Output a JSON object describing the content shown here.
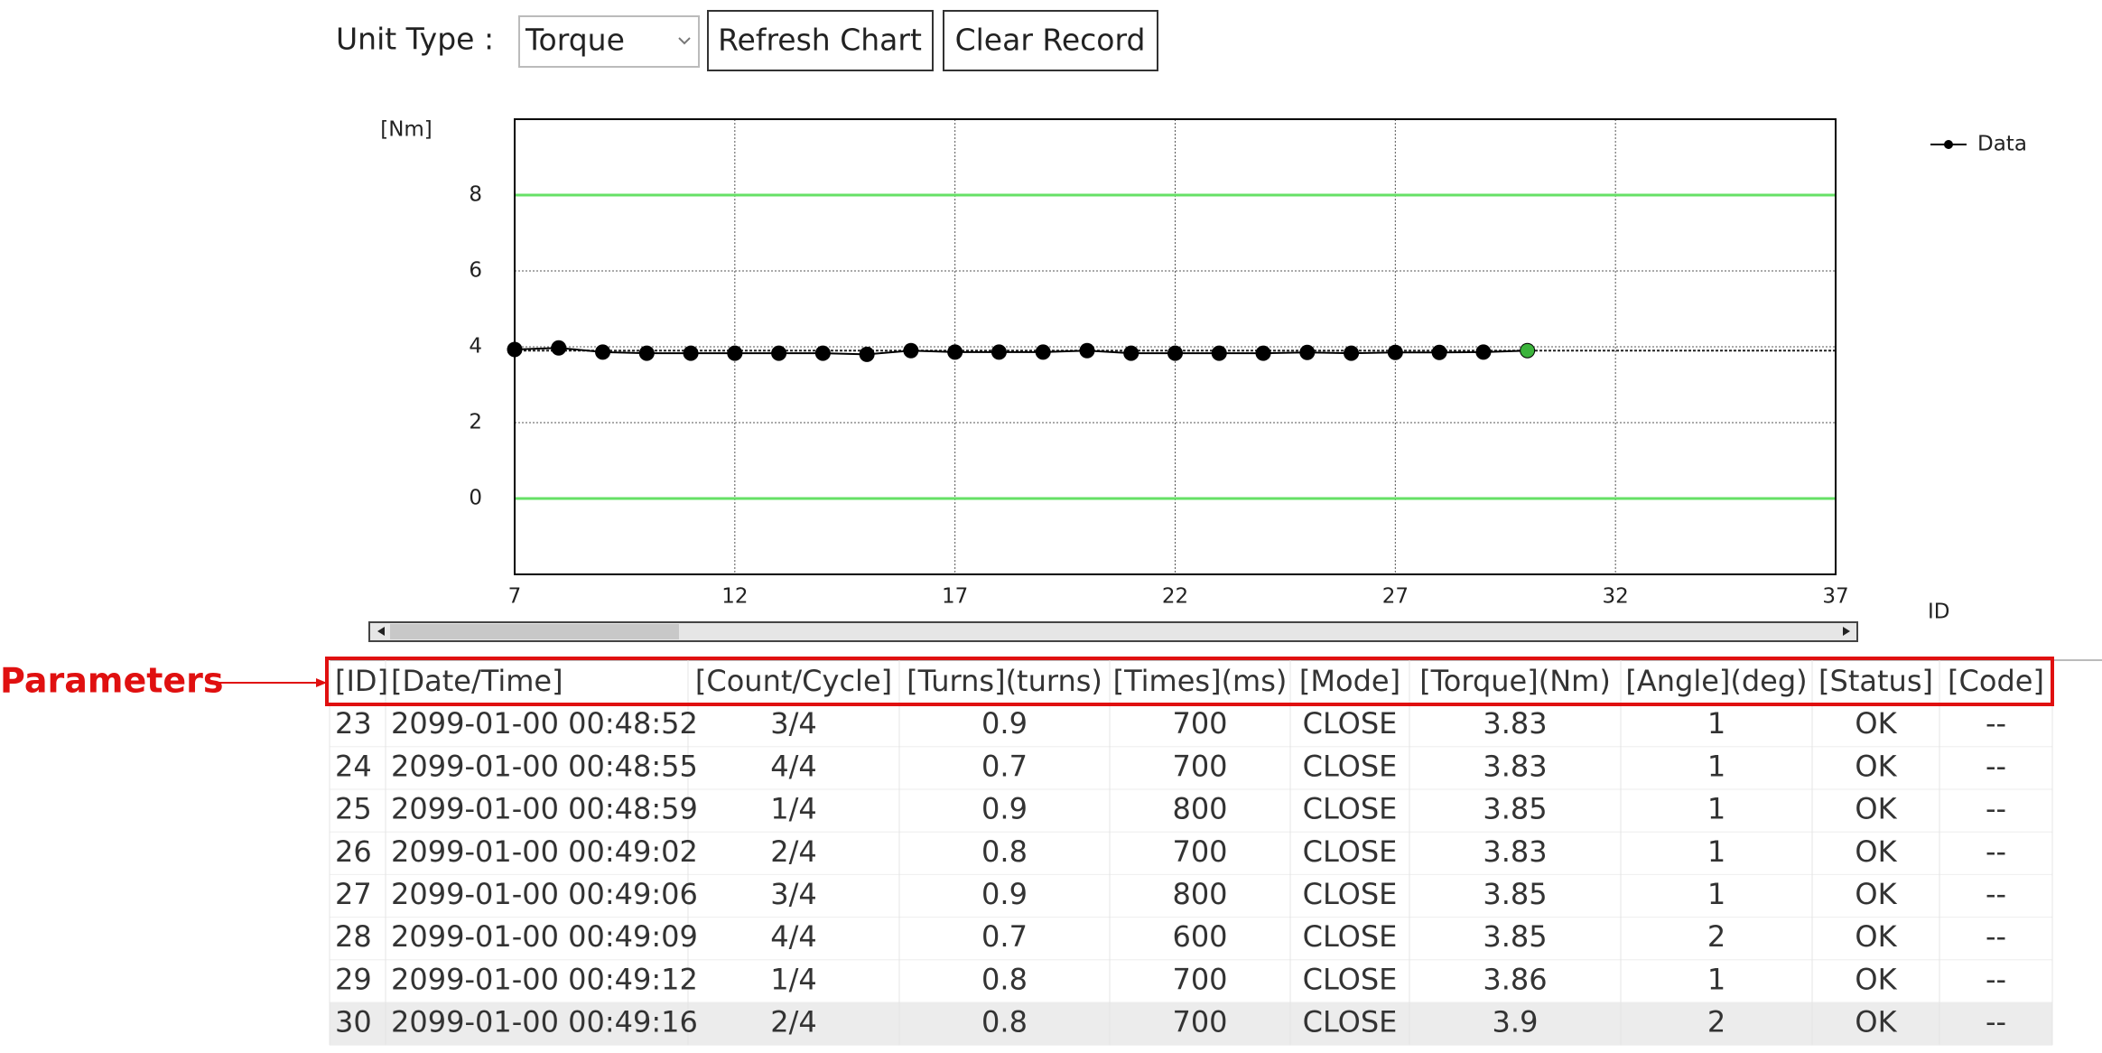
{
  "toolbar": {
    "unit_label": "Unit Type :",
    "unit_value": "Torque",
    "refresh_button": "Refresh Chart",
    "clear_button": "Clear Record"
  },
  "chart_data": {
    "type": "line",
    "y_label": "[Nm]",
    "x_label": "ID",
    "x": [
      7,
      8,
      9,
      10,
      11,
      12,
      13,
      14,
      15,
      16,
      17,
      18,
      19,
      20,
      21,
      22,
      23,
      24,
      25,
      26,
      27,
      28,
      29,
      30
    ],
    "series": [
      {
        "name": "Data",
        "color": "#000000",
        "last_point_color": "#3cb43c",
        "values": [
          3.93,
          3.97,
          3.86,
          3.83,
          3.83,
          3.83,
          3.83,
          3.83,
          3.8,
          3.9,
          3.86,
          3.86,
          3.86,
          3.9,
          3.83,
          3.83,
          3.83,
          3.83,
          3.85,
          3.83,
          3.85,
          3.85,
          3.86,
          3.9
        ]
      }
    ],
    "xlim": [
      7,
      37
    ],
    "xticks": [
      7,
      12,
      17,
      22,
      27,
      32,
      37
    ],
    "ylim": [
      -2,
      10
    ],
    "yticks": [
      0,
      2,
      4,
      6,
      8
    ],
    "limit_lines": [
      0,
      8
    ],
    "limit_color": "#66e066",
    "reference_line": 3.9,
    "grid": true,
    "legend": "upper right"
  },
  "annotation": {
    "label": "Parameters"
  },
  "table": {
    "headers": [
      "[ID]",
      "[Date/Time]",
      "[Count/Cycle]",
      "[Turns](turns)",
      "[Times](ms)",
      "[Mode]",
      "[Torque](Nm)",
      "[Angle](deg)",
      "[Status]",
      "[Code]"
    ],
    "rows": [
      [
        "23",
        "2099-01-00 00:48:52",
        "3/4",
        "0.9",
        "700",
        "CLOSE",
        "3.83",
        "1",
        "OK",
        "--"
      ],
      [
        "24",
        "2099-01-00 00:48:55",
        "4/4",
        "0.7",
        "700",
        "CLOSE",
        "3.83",
        "1",
        "OK",
        "--"
      ],
      [
        "25",
        "2099-01-00 00:48:59",
        "1/4",
        "0.9",
        "800",
        "CLOSE",
        "3.85",
        "1",
        "OK",
        "--"
      ],
      [
        "26",
        "2099-01-00 00:49:02",
        "2/4",
        "0.8",
        "700",
        "CLOSE",
        "3.83",
        "1",
        "OK",
        "--"
      ],
      [
        "27",
        "2099-01-00 00:49:06",
        "3/4",
        "0.9",
        "800",
        "CLOSE",
        "3.85",
        "1",
        "OK",
        "--"
      ],
      [
        "28",
        "2099-01-00 00:49:09",
        "4/4",
        "0.7",
        "600",
        "CLOSE",
        "3.85",
        "2",
        "OK",
        "--"
      ],
      [
        "29",
        "2099-01-00 00:49:12",
        "1/4",
        "0.8",
        "700",
        "CLOSE",
        "3.86",
        "1",
        "OK",
        "--"
      ],
      [
        "30",
        "2099-01-00 00:49:16",
        "2/4",
        "0.8",
        "700",
        "CLOSE",
        "3.9",
        "2",
        "OK",
        "--"
      ]
    ],
    "selected_row": 7
  }
}
